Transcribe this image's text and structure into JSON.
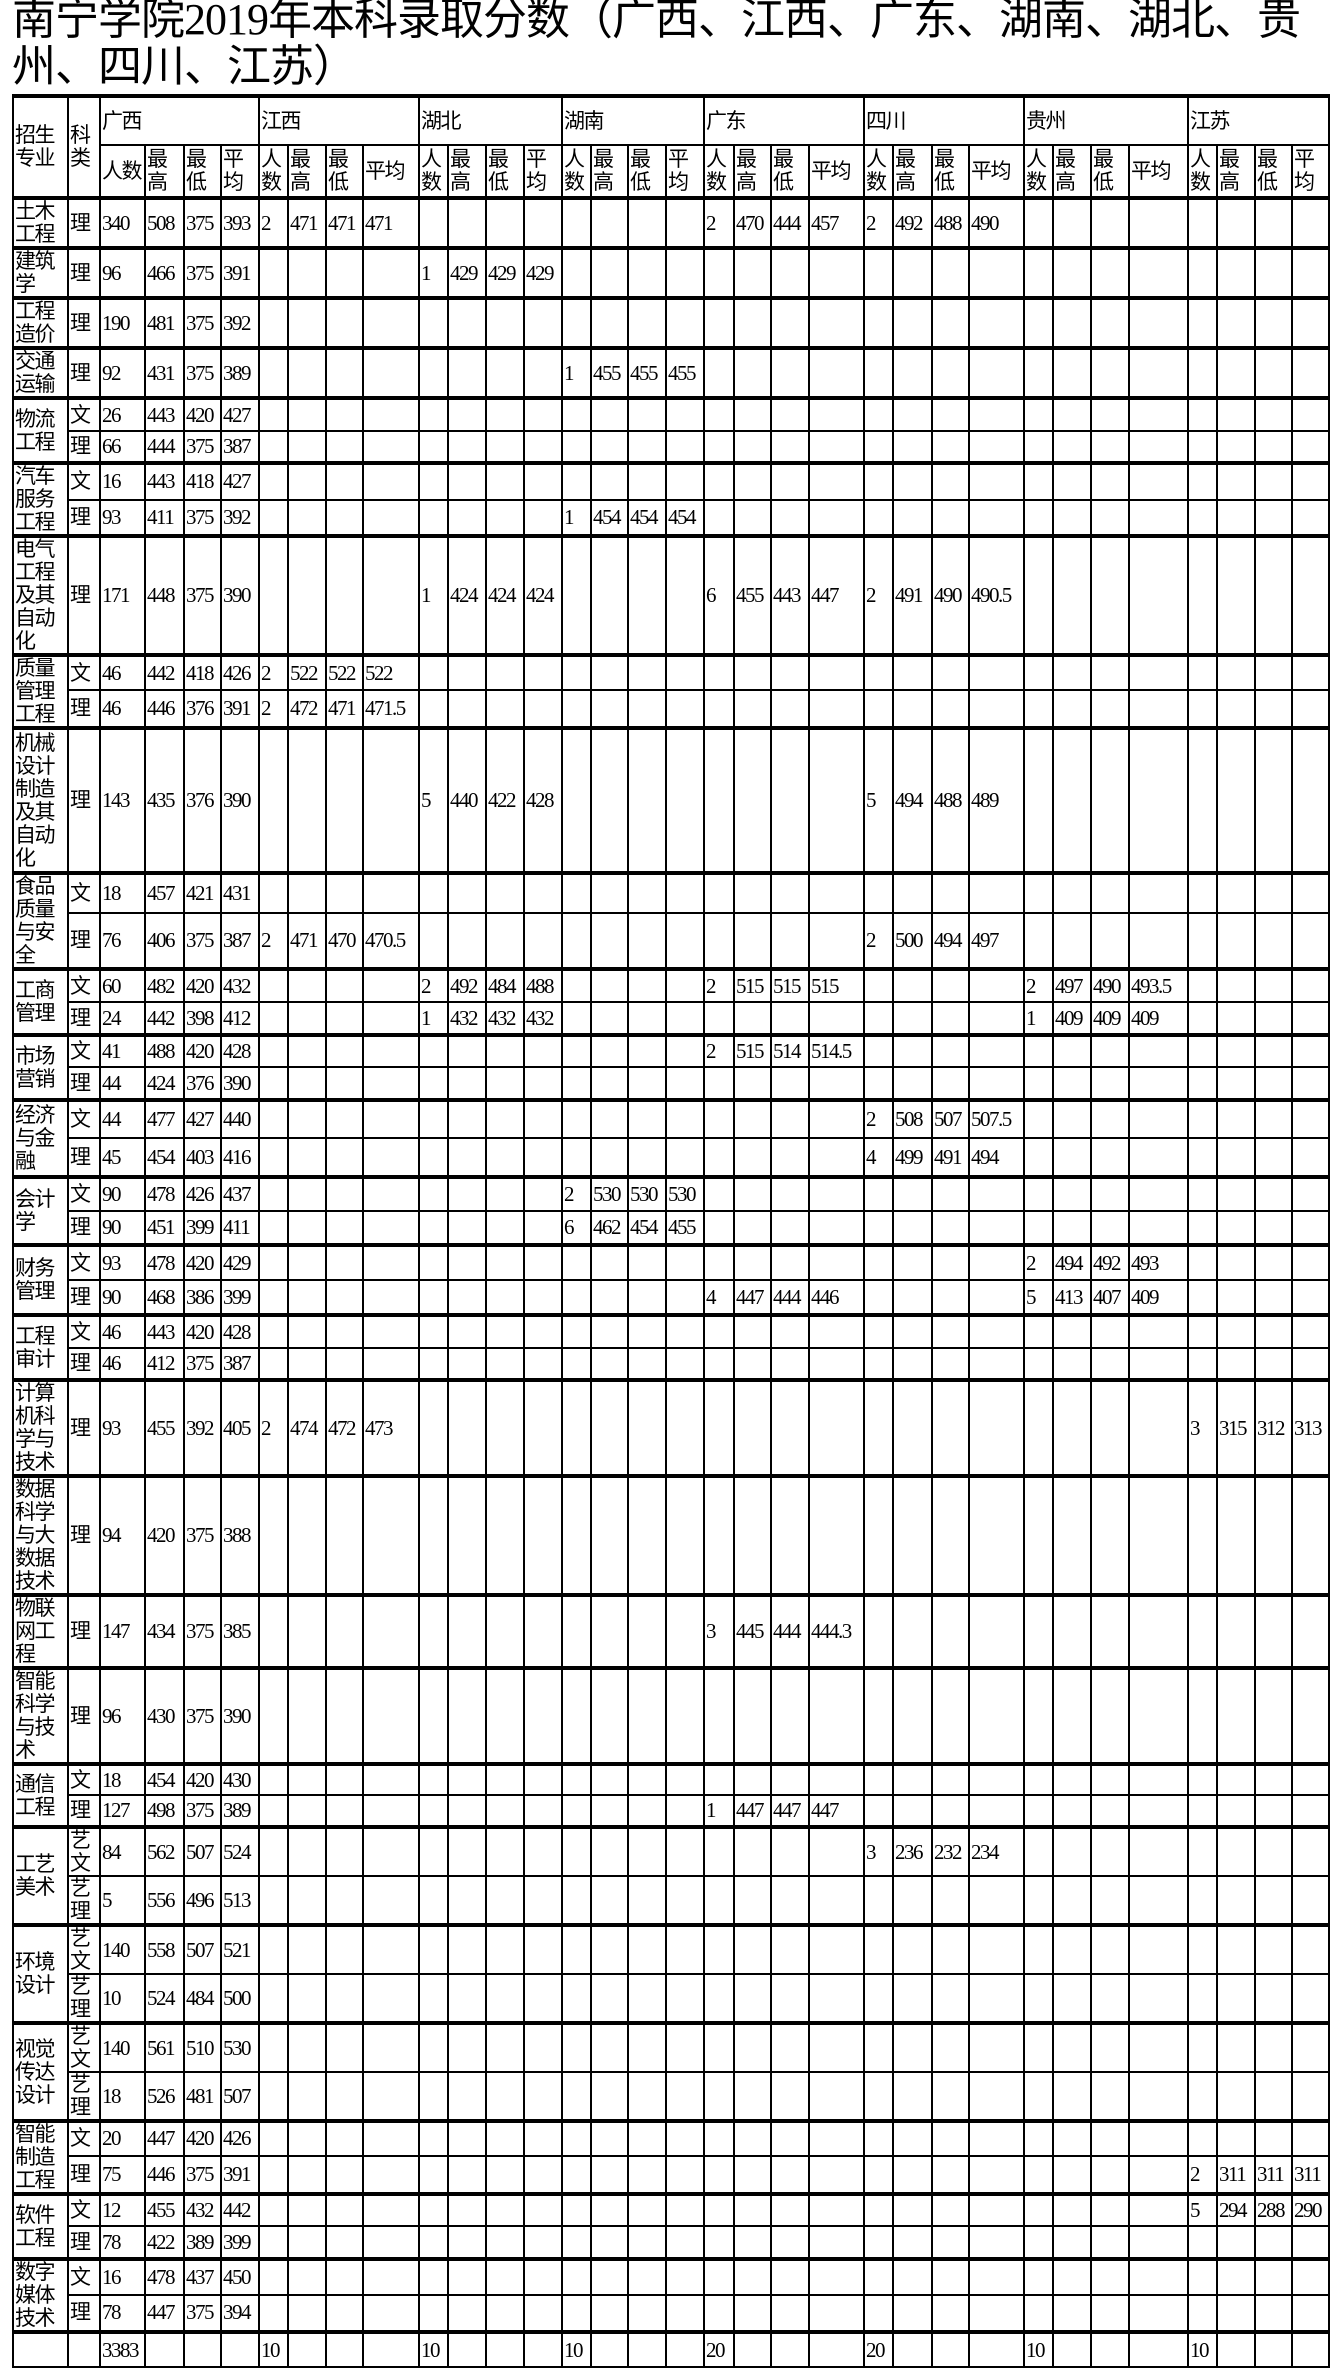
{
  "title": "南宁学院2019年本科录取分数（广西、江西、广东、湖南、湖北、贵州、四川、江苏）",
  "header": {
    "major": "招生专业",
    "type": "科类",
    "provinces": [
      {
        "key": "gx",
        "name": "广西",
        "cols": [
          "人数",
          "最高",
          "最低",
          "平均"
        ]
      },
      {
        "key": "jx",
        "name": "江西",
        "cols": [
          "人数",
          "最高",
          "最低",
          "平均"
        ]
      },
      {
        "key": "hb",
        "name": "湖北",
        "cols": [
          "人数",
          "最高",
          "最低",
          "平均"
        ]
      },
      {
        "key": "hn",
        "name": "湖南",
        "cols": [
          "人数",
          "最高",
          "最低",
          "平均"
        ]
      },
      {
        "key": "gd",
        "name": "广东",
        "cols": [
          "人数",
          "最高",
          "最低",
          "平均"
        ]
      },
      {
        "key": "sc",
        "name": "四川",
        "cols": [
          "人数",
          "最高",
          "最低",
          "平均"
        ]
      },
      {
        "key": "gz",
        "name": "贵州",
        "cols": [
          "人数",
          "最高",
          "最低",
          "平均"
        ]
      },
      {
        "key": "js",
        "name": "江苏",
        "cols": [
          "人数",
          "最高",
          "最低",
          "平均"
        ]
      }
    ]
  },
  "groups": [
    {
      "major": "土木工程",
      "rows": [
        {
          "type": "理",
          "gx": [
            "340",
            "508",
            "375",
            "393"
          ],
          "jx": [
            "2",
            "471",
            "471",
            "471"
          ],
          "gd": [
            "2",
            "470",
            "444",
            "457"
          ],
          "sc": [
            "2",
            "492",
            "488",
            "490"
          ]
        }
      ]
    },
    {
      "major": "建筑学",
      "rows": [
        {
          "type": "理",
          "gx": [
            "96",
            "466",
            "375",
            "391"
          ],
          "hb": [
            "1",
            "429",
            "429",
            "429"
          ]
        }
      ]
    },
    {
      "major": "工程造价",
      "rows": [
        {
          "type": "理",
          "gx": [
            "190",
            "481",
            "375",
            "392"
          ]
        }
      ]
    },
    {
      "major": "交通运输",
      "rows": [
        {
          "type": "理",
          "gx": [
            "92",
            "431",
            "375",
            "389"
          ],
          "hn": [
            "1",
            "455",
            "455",
            "455"
          ]
        }
      ]
    },
    {
      "major": "物流工程",
      "rows": [
        {
          "type": "文",
          "gx": [
            "26",
            "443",
            "420",
            "427"
          ]
        },
        {
          "type": "理",
          "gx": [
            "66",
            "444",
            "375",
            "387"
          ]
        }
      ]
    },
    {
      "major": "汽车服务工程",
      "rows": [
        {
          "type": "文",
          "gx": [
            "16",
            "443",
            "418",
            "427"
          ]
        },
        {
          "type": "理",
          "gx": [
            "93",
            "411",
            "375",
            "392"
          ],
          "hn": [
            "1",
            "454",
            "454",
            "454"
          ]
        }
      ]
    },
    {
      "major": "电气工程及其自动化",
      "rows": [
        {
          "type": "理",
          "gx": [
            "171",
            "448",
            "375",
            "390"
          ],
          "hb": [
            "1",
            "424",
            "424",
            "424"
          ],
          "gd": [
            "6",
            "455",
            "443",
            "447"
          ],
          "sc": [
            "2",
            "491",
            "490",
            "490.5"
          ]
        }
      ]
    },
    {
      "major": "质量管理工程",
      "rows": [
        {
          "type": "文",
          "gx": [
            "46",
            "442",
            "418",
            "426"
          ],
          "jx": [
            "2",
            "522",
            "522",
            "522"
          ]
        },
        {
          "type": "理",
          "gx": [
            "46",
            "446",
            "376",
            "391"
          ],
          "jx": [
            "2",
            "472",
            "471",
            "471.5"
          ]
        }
      ]
    },
    {
      "major": "机械设计制造及其自动化",
      "rows": [
        {
          "type": "理",
          "gx": [
            "143",
            "435",
            "376",
            "390"
          ],
          "hb": [
            "5",
            "440",
            "422",
            "428"
          ],
          "sc": [
            "5",
            "494",
            "488",
            "489"
          ]
        }
      ]
    },
    {
      "major": "食品质量与安全",
      "rows": [
        {
          "type": "文",
          "gx": [
            "18",
            "457",
            "421",
            "431"
          ]
        },
        {
          "type": "理",
          "gx": [
            "76",
            "406",
            "375",
            "387"
          ],
          "jx": [
            "2",
            "471",
            "470",
            "470.5"
          ],
          "sc": [
            "2",
            "500",
            "494",
            "497"
          ]
        }
      ]
    },
    {
      "major": "工商管理",
      "rows": [
        {
          "type": "文",
          "gx": [
            "60",
            "482",
            "420",
            "432"
          ],
          "hb": [
            "2",
            "492",
            "484",
            "488"
          ],
          "gd": [
            "2",
            "515",
            "515",
            "515"
          ],
          "gz": [
            "2",
            "497",
            "490",
            "493.5"
          ]
        },
        {
          "type": "理",
          "gx": [
            "24",
            "442",
            "398",
            "412"
          ],
          "hb": [
            "1",
            "432",
            "432",
            "432"
          ],
          "gz": [
            "1",
            "409",
            "409",
            "409"
          ]
        }
      ]
    },
    {
      "major": "市场营销",
      "rows": [
        {
          "type": "文",
          "gx": [
            "41",
            "488",
            "420",
            "428"
          ],
          "gd": [
            "2",
            "515",
            "514",
            "514.5"
          ]
        },
        {
          "type": "理",
          "gx": [
            "44",
            "424",
            "376",
            "390"
          ]
        }
      ]
    },
    {
      "major": "经济与金融",
      "rows": [
        {
          "type": "文",
          "gx": [
            "44",
            "477",
            "427",
            "440"
          ],
          "sc": [
            "2",
            "508",
            "507",
            "507.5"
          ]
        },
        {
          "type": "理",
          "gx": [
            "45",
            "454",
            "403",
            "416"
          ],
          "sc": [
            "4",
            "499",
            "491",
            "494"
          ]
        }
      ]
    },
    {
      "major": "会计学",
      "rows": [
        {
          "type": "文",
          "gx": [
            "90",
            "478",
            "426",
            "437"
          ],
          "hn": [
            "2",
            "530",
            "530",
            "530"
          ]
        },
        {
          "type": "理",
          "gx": [
            "90",
            "451",
            "399",
            "411"
          ],
          "hn": [
            "6",
            "462",
            "454",
            "455"
          ]
        }
      ]
    },
    {
      "major": "财务管理",
      "rows": [
        {
          "type": "文",
          "gx": [
            "93",
            "478",
            "420",
            "429"
          ],
          "gz": [
            "2",
            "494",
            "492",
            "493"
          ]
        },
        {
          "type": "理",
          "gx": [
            "90",
            "468",
            "386",
            "399"
          ],
          "gd": [
            "4",
            "447",
            "444",
            "446"
          ],
          "gz": [
            "5",
            "413",
            "407",
            "409"
          ]
        }
      ]
    },
    {
      "major": "工程审计",
      "rows": [
        {
          "type": "文",
          "gx": [
            "46",
            "443",
            "420",
            "428"
          ]
        },
        {
          "type": "理",
          "gx": [
            "46",
            "412",
            "375",
            "387"
          ]
        }
      ]
    },
    {
      "major": "计算机科学与技术",
      "rows": [
        {
          "type": "理",
          "gx": [
            "93",
            "455",
            "392",
            "405"
          ],
          "jx": [
            "2",
            "474",
            "472",
            "473"
          ],
          "js": [
            "3",
            "315",
            "312",
            "313"
          ]
        }
      ]
    },
    {
      "major": "数据科学与大数据技术",
      "rows": [
        {
          "type": "理",
          "gx": [
            "94",
            "420",
            "375",
            "388"
          ]
        }
      ]
    },
    {
      "major": "物联网工程",
      "rows": [
        {
          "type": "理",
          "gx": [
            "147",
            "434",
            "375",
            "385"
          ],
          "gd": [
            "3",
            "445",
            "444",
            "444.3"
          ]
        }
      ]
    },
    {
      "major": "智能科学与技术",
      "rows": [
        {
          "type": "理",
          "gx": [
            "96",
            "430",
            "375",
            "390"
          ]
        }
      ]
    },
    {
      "major": "通信工程",
      "rows": [
        {
          "type": "文",
          "gx": [
            "18",
            "454",
            "420",
            "430"
          ]
        },
        {
          "type": "理",
          "gx": [
            "127",
            "498",
            "375",
            "389"
          ],
          "gd": [
            "1",
            "447",
            "447",
            "447"
          ]
        }
      ]
    },
    {
      "major": "工艺美术",
      "rows": [
        {
          "type": "艺文",
          "gx": [
            "84",
            "562",
            "507",
            "524"
          ],
          "sc": [
            "3",
            "236",
            "232",
            "234"
          ]
        },
        {
          "type": "艺理",
          "gx": [
            "5",
            "556",
            "496",
            "513"
          ]
        }
      ]
    },
    {
      "major": "环境设计",
      "rows": [
        {
          "type": "艺文",
          "gx": [
            "140",
            "558",
            "507",
            "521"
          ]
        },
        {
          "type": "艺理",
          "gx": [
            "10",
            "524",
            "484",
            "500"
          ]
        }
      ]
    },
    {
      "major": "视觉传达设计",
      "rows": [
        {
          "type": "艺文",
          "gx": [
            "140",
            "561",
            "510",
            "530"
          ]
        },
        {
          "type": "艺理",
          "gx": [
            "18",
            "526",
            "481",
            "507"
          ]
        }
      ]
    },
    {
      "major": "智能制造工程",
      "rows": [
        {
          "type": "文",
          "gx": [
            "20",
            "447",
            "420",
            "426"
          ]
        },
        {
          "type": "理",
          "gx": [
            "75",
            "446",
            "375",
            "391"
          ],
          "js": [
            "2",
            "311",
            "311",
            "311"
          ]
        }
      ]
    },
    {
      "major": "软件工程",
      "rows": [
        {
          "type": "文",
          "gx": [
            "12",
            "455",
            "432",
            "442"
          ],
          "js": [
            "5",
            "294",
            "288",
            "290"
          ]
        },
        {
          "type": "理",
          "gx": [
            "78",
            "422",
            "389",
            "399"
          ]
        }
      ]
    },
    {
      "major": "数字媒体技术",
      "rows": [
        {
          "type": "文",
          "gx": [
            "16",
            "478",
            "437",
            "450"
          ]
        },
        {
          "type": "理",
          "gx": [
            "78",
            "447",
            "375",
            "394"
          ]
        }
      ]
    }
  ],
  "totals": {
    "gx": "3383",
    "jx": "10",
    "hb": "10",
    "hn": "10",
    "gd": "20",
    "sc": "20",
    "gz": "10",
    "js": "10"
  }
}
